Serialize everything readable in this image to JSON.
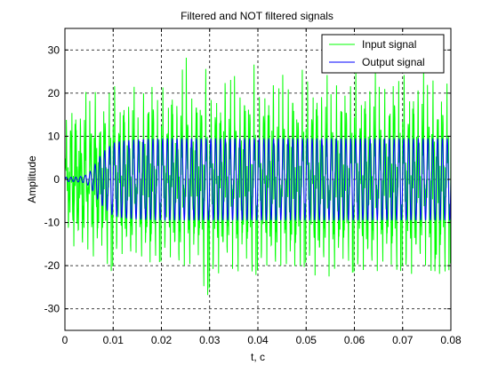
{
  "chart_data": {
    "type": "line",
    "title": "Filtered and NOT filtered signals",
    "xlabel": "t, c",
    "ylabel": "Amplitude",
    "xlim": [
      0,
      0.08
    ],
    "ylim": [
      -35,
      35
    ],
    "x_ticks": [
      0,
      0.01,
      0.02,
      0.03,
      0.04,
      0.05,
      0.06,
      0.07,
      0.08
    ],
    "x_tick_labels": [
      "0",
      "0.01",
      "0.02",
      "0.03",
      "0.04",
      "0.05",
      "0.06",
      "0.07",
      "0.08"
    ],
    "y_ticks": [
      -30,
      -20,
      -10,
      0,
      10,
      20,
      30
    ],
    "y_tick_labels": [
      "-30",
      "-20",
      "-10",
      "0",
      "10",
      "20",
      "30"
    ],
    "grid": true,
    "legend_position": "top-right",
    "series": [
      {
        "name": "Input signal",
        "color": "#00ff00",
        "description_values": "noisy multi-tone signal oscillating roughly between -30 and +30",
        "x": [
          0.0,
          0.001,
          0.002,
          0.003,
          0.004,
          0.005,
          0.006,
          0.007,
          0.008,
          0.009,
          0.01,
          0.011,
          0.012,
          0.013,
          0.014,
          0.015,
          0.016,
          0.017,
          0.018,
          0.019,
          0.02,
          0.021,
          0.022,
          0.023,
          0.024,
          0.025,
          0.026,
          0.027,
          0.028,
          0.029,
          0.03,
          0.031,
          0.032,
          0.033,
          0.034,
          0.035,
          0.036,
          0.037,
          0.038,
          0.039,
          0.04,
          0.041,
          0.042,
          0.043,
          0.044,
          0.045,
          0.046,
          0.047,
          0.048,
          0.049,
          0.05,
          0.051,
          0.052,
          0.053,
          0.054,
          0.055,
          0.056,
          0.057,
          0.058,
          0.059,
          0.06,
          0.061,
          0.062,
          0.063,
          0.064,
          0.065,
          0.066,
          0.067,
          0.068,
          0.069,
          0.07,
          0.071,
          0.072,
          0.073,
          0.074,
          0.075,
          0.076,
          0.077,
          0.078,
          0.079,
          0.08
        ],
        "envelope_max": [
          12,
          18,
          20,
          15,
          22,
          17,
          25,
          14,
          21,
          19,
          24,
          16,
          23,
          18,
          26,
          13,
          22,
          20,
          29,
          17,
          24,
          15,
          27,
          19,
          23,
          30,
          18,
          25,
          21,
          28,
          16,
          24,
          19,
          27,
          22,
          25,
          18,
          26,
          21,
          29,
          17,
          24,
          22,
          27,
          19,
          25,
          20,
          28,
          18,
          26,
          23,
          22,
          25,
          21,
          27,
          19,
          24,
          22,
          26,
          20,
          28,
          18,
          25,
          23,
          27,
          21,
          24,
          19,
          29,
          22,
          26,
          20,
          25,
          23,
          28,
          21,
          27,
          19,
          24,
          22,
          23
        ],
        "envelope_min": [
          -10,
          -14,
          -18,
          -16,
          -20,
          -15,
          -22,
          -17,
          -19,
          -21,
          -24,
          -16,
          -20,
          -18,
          -23,
          -15,
          -22,
          -19,
          -25,
          -17,
          -23,
          -16,
          -21,
          -20,
          -26,
          -18,
          -24,
          -19,
          -22,
          -27,
          -30,
          -21,
          -25,
          -19,
          -23,
          -20,
          -26,
          -18,
          -24,
          -22,
          -25,
          -19,
          -23,
          -21,
          -26,
          -18,
          -24,
          -22,
          -25,
          -20,
          -23,
          -19,
          -26,
          -21,
          -24,
          -22,
          -25,
          -20,
          -23,
          -19,
          -26,
          -21,
          -24,
          -22,
          -25,
          -20,
          -23,
          -19,
          -26,
          -21,
          -24,
          -22,
          -25,
          -20,
          -23,
          -19,
          -26,
          -30,
          -24,
          -22,
          -23
        ]
      },
      {
        "name": "Output signal",
        "color": "#0000ff",
        "description_values": "filtered sinusoid starting near 0, ramping up from about t=0.006 and settling to about +/-9.5 amplitude",
        "x": [
          0.0,
          0.002,
          0.004,
          0.005,
          0.006,
          0.007,
          0.008,
          0.009,
          0.01,
          0.012,
          0.015,
          0.02,
          0.03,
          0.04,
          0.05,
          0.06,
          0.07,
          0.08
        ],
        "amplitude": [
          0.5,
          0.5,
          0.8,
          1.5,
          3,
          5,
          6.5,
          7.5,
          8.5,
          9.0,
          9.3,
          9.5,
          9.5,
          9.5,
          9.5,
          9.5,
          9.5,
          9.5
        ]
      }
    ]
  }
}
